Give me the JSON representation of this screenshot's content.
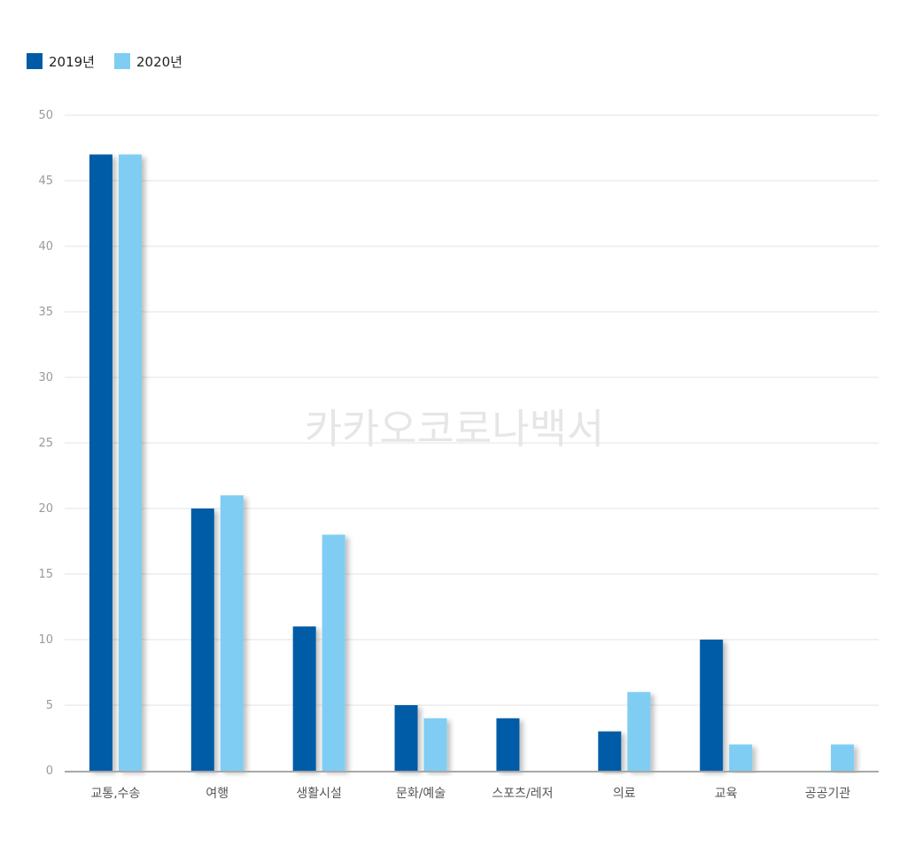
{
  "chart_data": {
    "type": "bar",
    "categories": [
      "교통,수송",
      "여행",
      "생활시설",
      "문화/예술",
      "스포츠/레저",
      "의료",
      "교육",
      "공공기관"
    ],
    "series": [
      {
        "name": "2019년",
        "color": "#005ba6",
        "values": [
          47,
          20,
          11,
          5,
          4,
          3,
          10,
          null
        ]
      },
      {
        "name": "2020년",
        "color": "#7fcdf3",
        "values": [
          47,
          21,
          18,
          4,
          null,
          6,
          2,
          2
        ]
      }
    ],
    "ylim": [
      0,
      50
    ],
    "yticks": [
      0,
      5,
      10,
      15,
      20,
      25,
      30,
      35,
      40,
      45,
      50
    ],
    "grid": true,
    "legend_position": "top-left",
    "watermark": "카카오코로나백서"
  }
}
